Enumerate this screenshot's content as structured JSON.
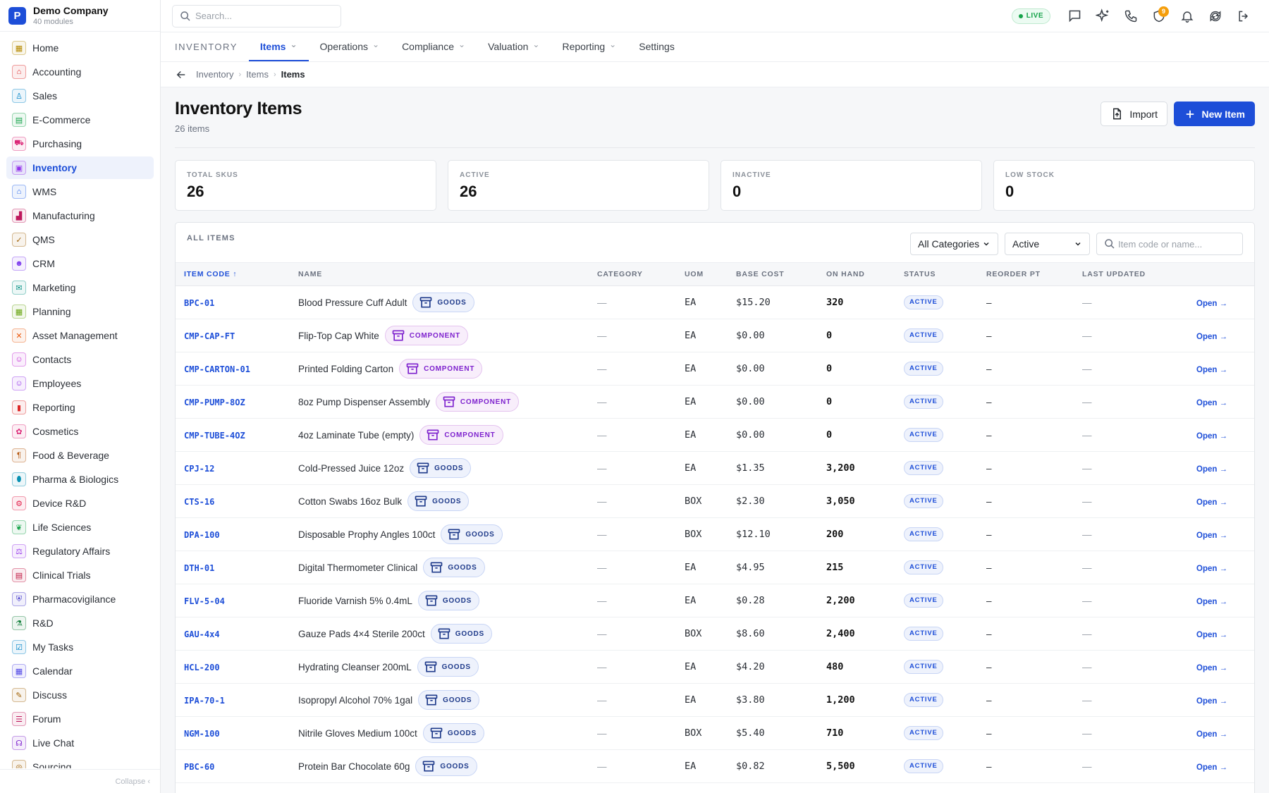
{
  "brand": {
    "logo": "P",
    "name": "Demo Company",
    "sub": "40 modules"
  },
  "sidebar": {
    "items": [
      {
        "label": "Home",
        "icon": "grid-icon",
        "color": "#b58900",
        "glyph": "▦"
      },
      {
        "label": "Accounting",
        "icon": "bank-icon",
        "color": "#dc2626",
        "glyph": "⌂"
      },
      {
        "label": "Sales",
        "icon": "flask-icon",
        "color": "#0284c7",
        "glyph": "♙"
      },
      {
        "label": "E-Commerce",
        "icon": "storefront-icon",
        "color": "#16a34a",
        "glyph": "▤"
      },
      {
        "label": "Purchasing",
        "icon": "cart-icon",
        "color": "#db2777",
        "glyph": "⛟"
      },
      {
        "label": "Inventory",
        "icon": "archive-icon",
        "color": "#9333ea",
        "glyph": "▣"
      },
      {
        "label": "WMS",
        "icon": "warehouse-icon",
        "color": "#2563eb",
        "glyph": "⌂"
      },
      {
        "label": "Manufacturing",
        "icon": "factory-icon",
        "color": "#be185d",
        "glyph": "▟"
      },
      {
        "label": "QMS",
        "icon": "badge-check-icon",
        "color": "#a16207",
        "glyph": "✓"
      },
      {
        "label": "CRM",
        "icon": "users-icon",
        "color": "#7c3aed",
        "glyph": "☻"
      },
      {
        "label": "Marketing",
        "icon": "megaphone-icon",
        "color": "#0d9488",
        "glyph": "✉"
      },
      {
        "label": "Planning",
        "icon": "calendar-grid-icon",
        "color": "#65a30d",
        "glyph": "▦"
      },
      {
        "label": "Asset Management",
        "icon": "tools-icon",
        "color": "#ea580c",
        "glyph": "✕"
      },
      {
        "label": "Contacts",
        "icon": "contact-card-icon",
        "color": "#c026d3",
        "glyph": "☺"
      },
      {
        "label": "Employees",
        "icon": "id-badge-icon",
        "color": "#9333ea",
        "glyph": "☺"
      },
      {
        "label": "Reporting",
        "icon": "bar-chart-icon",
        "color": "#dc2626",
        "glyph": "▮"
      },
      {
        "label": "Cosmetics",
        "icon": "sparkle-icon",
        "color": "#db2777",
        "glyph": "✿"
      },
      {
        "label": "Food & Beverage",
        "icon": "utensils-icon",
        "color": "#b45309",
        "glyph": "¶"
      },
      {
        "label": "Pharma & Biologics",
        "icon": "pill-icon",
        "color": "#0891b2",
        "glyph": "⬮"
      },
      {
        "label": "Device R&D",
        "icon": "cog-icon",
        "color": "#e11d48",
        "glyph": "⚙"
      },
      {
        "label": "Life Sciences",
        "icon": "leaf-icon",
        "color": "#16a34a",
        "glyph": "❦"
      },
      {
        "label": "Regulatory Affairs",
        "icon": "gavel-icon",
        "color": "#9333ea",
        "glyph": "⚖"
      },
      {
        "label": "Clinical Trials",
        "icon": "clipboard-icon",
        "color": "#be123c",
        "glyph": "▤"
      },
      {
        "label": "Pharmacovigilance",
        "icon": "shield-icon",
        "color": "#4338ca",
        "glyph": "⛨"
      },
      {
        "label": "R&D",
        "icon": "beaker-icon",
        "color": "#15803d",
        "glyph": "⚗"
      },
      {
        "label": "My Tasks",
        "icon": "checklist-icon",
        "color": "#0284c7",
        "glyph": "☑"
      },
      {
        "label": "Calendar",
        "icon": "calendar-icon",
        "color": "#4f46e5",
        "glyph": "▦"
      },
      {
        "label": "Discuss",
        "icon": "chat-icon",
        "color": "#a16207",
        "glyph": "✎"
      },
      {
        "label": "Forum",
        "icon": "forum-icon",
        "color": "#be185d",
        "glyph": "☰"
      },
      {
        "label": "Live Chat",
        "icon": "headset-icon",
        "color": "#7e22ce",
        "glyph": "☊"
      },
      {
        "label": "Sourcing",
        "icon": "globe-icon",
        "color": "#a16207",
        "glyph": "◎"
      }
    ],
    "active_index": 5,
    "collapse_label": "Collapse ‹"
  },
  "topbar": {
    "search_placeholder": "Search...",
    "live_label": "LIVE",
    "notifications_count": "9"
  },
  "module": {
    "title": "INVENTORY",
    "tabs": [
      {
        "label": "Items",
        "has_menu": true,
        "active": true
      },
      {
        "label": "Operations",
        "has_menu": true
      },
      {
        "label": "Compliance",
        "has_menu": true
      },
      {
        "label": "Valuation",
        "has_menu": true
      },
      {
        "label": "Reporting",
        "has_menu": true
      },
      {
        "label": "Settings",
        "has_menu": false
      }
    ]
  },
  "breadcrumb": {
    "items": [
      "Inventory",
      "Items",
      "Items"
    ]
  },
  "page": {
    "title": "Inventory Items",
    "subtitle": "26 items",
    "import_label": "Import",
    "new_label": "New Item"
  },
  "stats": [
    {
      "label": "TOTAL SKUS",
      "value": "26"
    },
    {
      "label": "ACTIVE",
      "value": "26"
    },
    {
      "label": "INACTIVE",
      "value": "0"
    },
    {
      "label": "LOW STOCK",
      "value": "0"
    }
  ],
  "table": {
    "title": "ALL ITEMS",
    "filters": {
      "category": "All Categories",
      "status": "Active",
      "search_placeholder": "Item code or name..."
    },
    "columns": [
      "ITEM CODE ↑",
      "NAME",
      "CATEGORY",
      "UOM",
      "BASE COST",
      "ON HAND",
      "STATUS",
      "REORDER PT",
      "LAST UPDATED",
      ""
    ],
    "rows": [
      {
        "code": "BPC-01",
        "name": "Blood Pressure Cuff Adult",
        "type": "GOODS",
        "category": "—",
        "uom": "EA",
        "cost": "$15.20",
        "on_hand": "320",
        "status": "ACTIVE",
        "reorder": "–",
        "updated": "—",
        "action": "Open →"
      },
      {
        "code": "CMP-CAP-FT",
        "name": "Flip-Top Cap White",
        "type": "COMPONENT",
        "category": "—",
        "uom": "EA",
        "cost": "$0.00",
        "on_hand": "0",
        "status": "ACTIVE",
        "reorder": "–",
        "updated": "—",
        "action": "Open →"
      },
      {
        "code": "CMP-CARTON-01",
        "name": "Printed Folding Carton",
        "type": "COMPONENT",
        "category": "—",
        "uom": "EA",
        "cost": "$0.00",
        "on_hand": "0",
        "status": "ACTIVE",
        "reorder": "–",
        "updated": "—",
        "action": "Open →"
      },
      {
        "code": "CMP-PUMP-8OZ",
        "name": "8oz Pump Dispenser Assembly",
        "type": "COMPONENT",
        "category": "—",
        "uom": "EA",
        "cost": "$0.00",
        "on_hand": "0",
        "status": "ACTIVE",
        "reorder": "–",
        "updated": "—",
        "action": "Open →"
      },
      {
        "code": "CMP-TUBE-4OZ",
        "name": "4oz Laminate Tube (empty)",
        "type": "COMPONENT",
        "category": "—",
        "uom": "EA",
        "cost": "$0.00",
        "on_hand": "0",
        "status": "ACTIVE",
        "reorder": "–",
        "updated": "—",
        "action": "Open →"
      },
      {
        "code": "CPJ-12",
        "name": "Cold-Pressed Juice 12oz",
        "type": "GOODS",
        "category": "—",
        "uom": "EA",
        "cost": "$1.35",
        "on_hand": "3,200",
        "status": "ACTIVE",
        "reorder": "–",
        "updated": "—",
        "action": "Open →"
      },
      {
        "code": "CTS-16",
        "name": "Cotton Swabs 16oz Bulk",
        "type": "GOODS",
        "category": "—",
        "uom": "BOX",
        "cost": "$2.30",
        "on_hand": "3,050",
        "status": "ACTIVE",
        "reorder": "–",
        "updated": "—",
        "action": "Open →"
      },
      {
        "code": "DPA-100",
        "name": "Disposable Prophy Angles 100ct",
        "type": "GOODS",
        "category": "—",
        "uom": "BOX",
        "cost": "$12.10",
        "on_hand": "200",
        "status": "ACTIVE",
        "reorder": "–",
        "updated": "—",
        "action": "Open →"
      },
      {
        "code": "DTH-01",
        "name": "Digital Thermometer Clinical",
        "type": "GOODS",
        "category": "—",
        "uom": "EA",
        "cost": "$4.95",
        "on_hand": "215",
        "status": "ACTIVE",
        "reorder": "–",
        "updated": "—",
        "action": "Open →"
      },
      {
        "code": "FLV-5-04",
        "name": "Fluoride Varnish 5% 0.4mL",
        "type": "GOODS",
        "category": "—",
        "uom": "EA",
        "cost": "$0.28",
        "on_hand": "2,200",
        "status": "ACTIVE",
        "reorder": "–",
        "updated": "—",
        "action": "Open →"
      },
      {
        "code": "GAU-4x4",
        "name": "Gauze Pads 4×4 Sterile 200ct",
        "type": "GOODS",
        "category": "—",
        "uom": "BOX",
        "cost": "$8.60",
        "on_hand": "2,400",
        "status": "ACTIVE",
        "reorder": "–",
        "updated": "—",
        "action": "Open →"
      },
      {
        "code": "HCL-200",
        "name": "Hydrating Cleanser 200mL",
        "type": "GOODS",
        "category": "—",
        "uom": "EA",
        "cost": "$4.20",
        "on_hand": "480",
        "status": "ACTIVE",
        "reorder": "–",
        "updated": "—",
        "action": "Open →"
      },
      {
        "code": "IPA-70-1",
        "name": "Isopropyl Alcohol 70% 1gal",
        "type": "GOODS",
        "category": "—",
        "uom": "EA",
        "cost": "$3.80",
        "on_hand": "1,200",
        "status": "ACTIVE",
        "reorder": "–",
        "updated": "—",
        "action": "Open →"
      },
      {
        "code": "NGM-100",
        "name": "Nitrile Gloves Medium 100ct",
        "type": "GOODS",
        "category": "—",
        "uom": "BOX",
        "cost": "$5.40",
        "on_hand": "710",
        "status": "ACTIVE",
        "reorder": "–",
        "updated": "—",
        "action": "Open →"
      },
      {
        "code": "PBC-60",
        "name": "Protein Bar Chocolate 60g",
        "type": "GOODS",
        "category": "—",
        "uom": "EA",
        "cost": "$0.82",
        "on_hand": "5,500",
        "status": "ACTIVE",
        "reorder": "–",
        "updated": "—",
        "action": "Open →"
      }
    ]
  }
}
